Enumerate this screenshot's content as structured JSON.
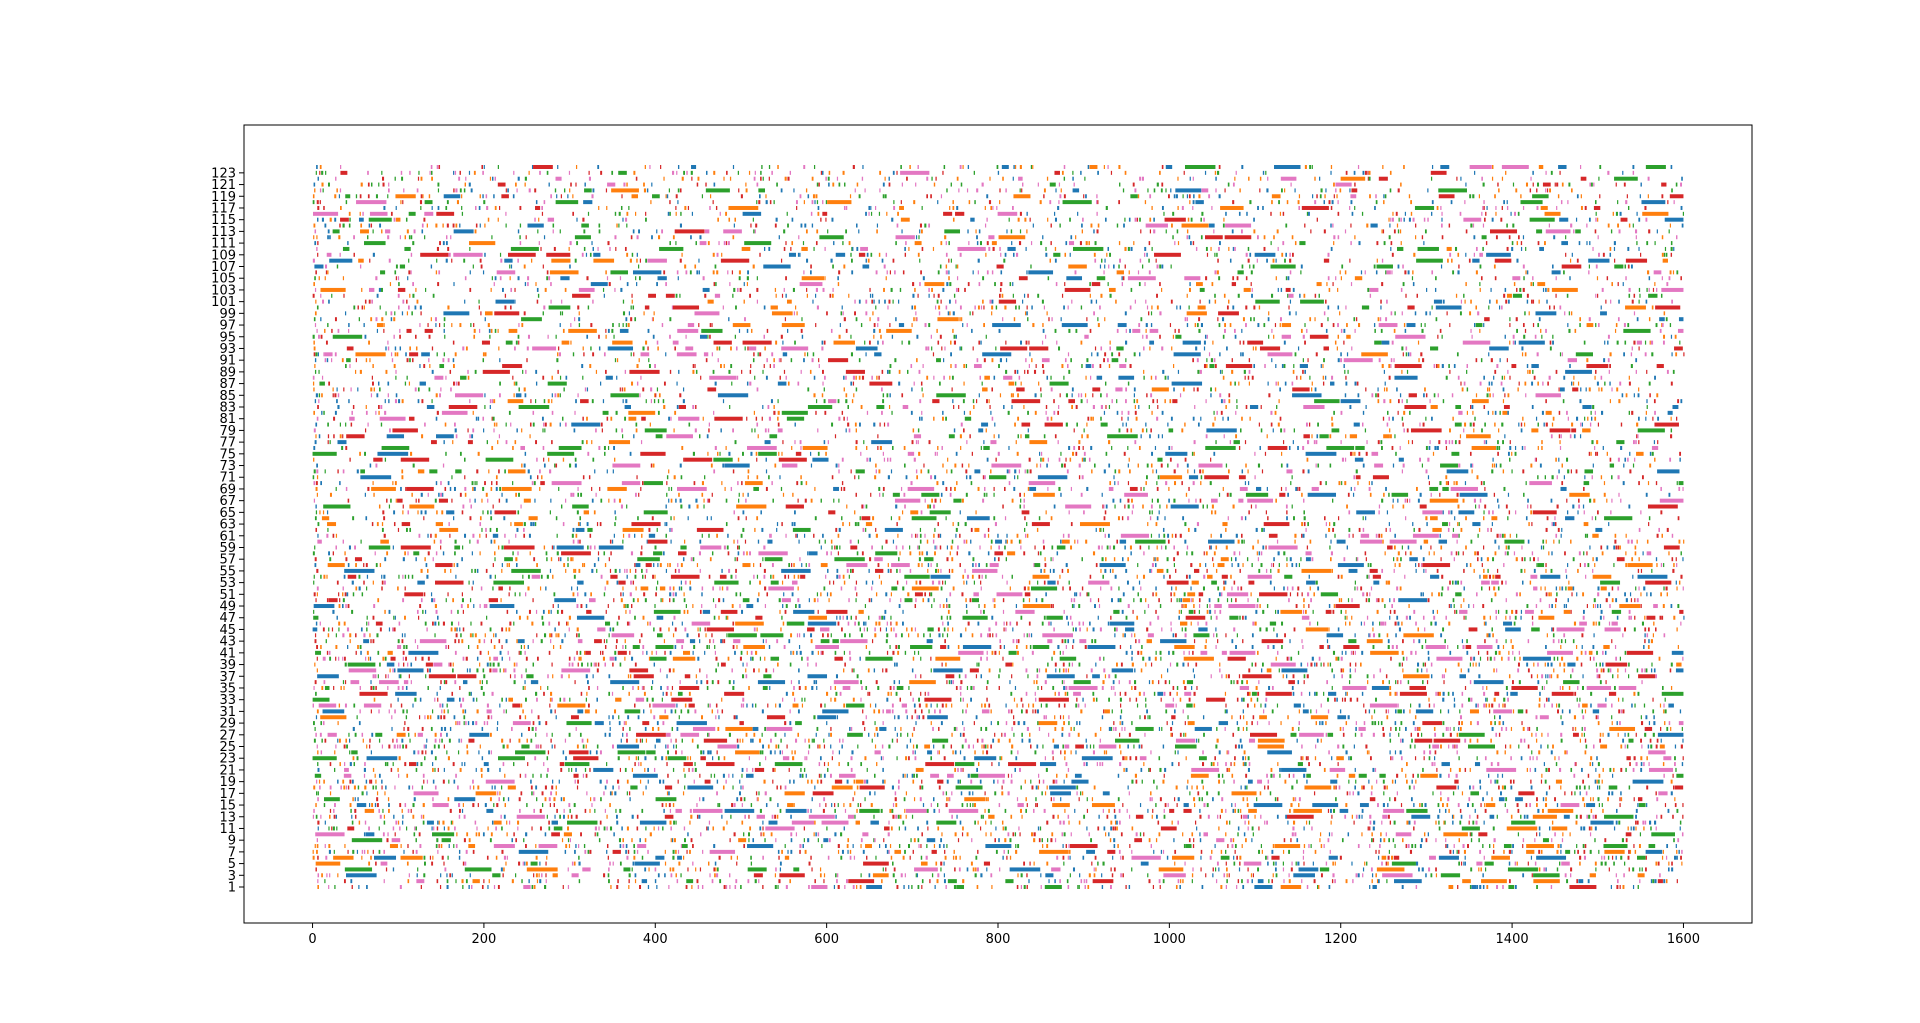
{
  "chart_data": {
    "type": "bar",
    "subtype": "horizontal-timeline-raster",
    "title": "",
    "xlabel": "",
    "ylabel": "",
    "xlim": [
      -80,
      1680
    ],
    "x_ticks": [
      0,
      200,
      400,
      600,
      800,
      1000,
      1200,
      1400,
      1600
    ],
    "y_rows": 124,
    "y_tick_labels": [
      "1",
      "3",
      "5",
      "7",
      "9",
      "11",
      "13",
      "15",
      "17",
      "19",
      "21",
      "23",
      "25",
      "27",
      "29",
      "31",
      "33",
      "35",
      "37",
      "39",
      "41",
      "43",
      "45",
      "47",
      "49",
      "51",
      "53",
      "55",
      "57",
      "59",
      "61",
      "63",
      "65",
      "67",
      "69",
      "71",
      "73",
      "75",
      "77",
      "79",
      "81",
      "83",
      "85",
      "87",
      "89",
      "91",
      "93",
      "95",
      "97",
      "99",
      "101",
      "103",
      "105",
      "107",
      "109",
      "111",
      "113",
      "115",
      "117",
      "119",
      "121",
      "123"
    ],
    "x_data_range": [
      0,
      1600
    ],
    "series_colors": [
      "#1f77b4",
      "#ff7f0e",
      "#2ca02c",
      "#d62728",
      "#e377c2"
    ],
    "grid": false,
    "legend": "none"
  }
}
